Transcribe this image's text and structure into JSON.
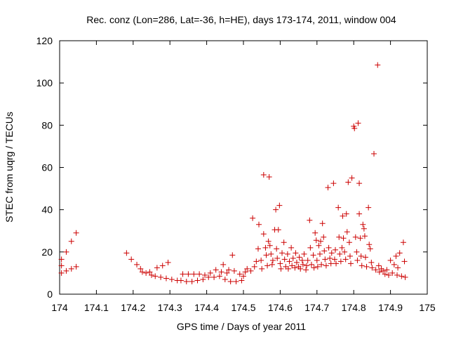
{
  "chart_data": {
    "type": "scatter",
    "title": "Rec. conz (Lon=286, Lat=-36, h=HE), days 173-174, 2011, window 004",
    "xlabel": "GPS time / Days of year 2011",
    "ylabel": "STEC from uqrg / TECUs",
    "xlim": [
      174,
      175
    ],
    "ylim": [
      0,
      120
    ],
    "grid": false,
    "legend": "none",
    "marker": "plus",
    "color": "#cc0000",
    "x_ticks": [
      174,
      174.1,
      174.2,
      174.3,
      174.4,
      174.5,
      174.6,
      174.7,
      174.8,
      174.9,
      175
    ],
    "x_tick_labels": [
      "174",
      "174.1",
      "174.2",
      "174.3",
      "174.4",
      "174.5",
      "174.6",
      "174.7",
      "174.8",
      "174.9",
      "175"
    ],
    "y_ticks": [
      0,
      20,
      40,
      60,
      80,
      100,
      120
    ],
    "y_tick_labels": [
      "0",
      "20",
      "40",
      "60",
      "80",
      "100",
      "120"
    ],
    "points": [
      [
        174.005,
        16.5
      ],
      [
        174.005,
        13.5
      ],
      [
        174.005,
        10.0
      ],
      [
        174.018,
        20.0
      ],
      [
        174.018,
        11.0
      ],
      [
        174.032,
        25.0
      ],
      [
        174.032,
        12.0
      ],
      [
        174.045,
        29.0
      ],
      [
        174.045,
        13.0
      ],
      [
        174.182,
        19.5
      ],
      [
        174.195,
        16.5
      ],
      [
        174.21,
        14.0
      ],
      [
        174.22,
        12.0
      ],
      [
        174.225,
        10.5
      ],
      [
        174.235,
        10.0
      ],
      [
        174.245,
        10.5
      ],
      [
        174.25,
        9.0
      ],
      [
        174.26,
        8.5
      ],
      [
        174.265,
        12.5
      ],
      [
        174.275,
        8.0
      ],
      [
        174.28,
        13.5
      ],
      [
        174.29,
        7.5
      ],
      [
        174.295,
        15.0
      ],
      [
        174.305,
        7.0
      ],
      [
        174.32,
        6.5
      ],
      [
        174.33,
        6.5
      ],
      [
        174.335,
        9.5
      ],
      [
        174.345,
        6.0
      ],
      [
        174.35,
        9.5
      ],
      [
        174.36,
        6.0
      ],
      [
        174.365,
        9.5
      ],
      [
        174.375,
        6.5
      ],
      [
        174.38,
        9.5
      ],
      [
        174.39,
        7.0
      ],
      [
        174.395,
        9.0
      ],
      [
        174.405,
        8.0
      ],
      [
        174.41,
        10.0
      ],
      [
        174.42,
        8.0
      ],
      [
        174.425,
        11.5
      ],
      [
        174.435,
        8.5
      ],
      [
        174.44,
        10.5
      ],
      [
        174.445,
        14.0
      ],
      [
        174.45,
        7.0
      ],
      [
        174.455,
        10.0
      ],
      [
        174.46,
        11.5
      ],
      [
        174.465,
        6.0
      ],
      [
        174.47,
        18.5
      ],
      [
        174.475,
        11.0
      ],
      [
        174.48,
        6.0
      ],
      [
        174.49,
        9.5
      ],
      [
        174.495,
        6.5
      ],
      [
        174.5,
        8.5
      ],
      [
        174.505,
        10.5
      ],
      [
        174.51,
        12.0
      ],
      [
        174.52,
        11.0
      ],
      [
        174.525,
        36.0
      ],
      [
        174.53,
        13.0
      ],
      [
        174.535,
        15.5
      ],
      [
        174.54,
        21.5
      ],
      [
        174.542,
        33.0
      ],
      [
        174.548,
        16.0
      ],
      [
        174.55,
        12.0
      ],
      [
        174.555,
        56.5
      ],
      [
        174.555,
        28.5
      ],
      [
        174.56,
        22.0
      ],
      [
        174.562,
        18.5
      ],
      [
        174.565,
        13.5
      ],
      [
        174.568,
        25.0
      ],
      [
        174.57,
        55.5
      ],
      [
        174.572,
        23.0
      ],
      [
        174.575,
        19.0
      ],
      [
        174.578,
        14.0
      ],
      [
        174.58,
        16.0
      ],
      [
        174.585,
        30.5
      ],
      [
        174.588,
        40.0
      ],
      [
        174.59,
        21.5
      ],
      [
        174.592,
        17.0
      ],
      [
        174.595,
        30.5
      ],
      [
        174.598,
        42.0
      ],
      [
        174.6,
        14.5
      ],
      [
        174.602,
        12.0
      ],
      [
        174.605,
        19.5
      ],
      [
        174.61,
        24.5
      ],
      [
        174.612,
        16.5
      ],
      [
        174.615,
        13.0
      ],
      [
        174.62,
        19.0
      ],
      [
        174.622,
        12.0
      ],
      [
        174.625,
        15.5
      ],
      [
        174.63,
        22.0
      ],
      [
        174.632,
        13.5
      ],
      [
        174.635,
        17.0
      ],
      [
        174.64,
        12.5
      ],
      [
        174.642,
        19.5
      ],
      [
        174.645,
        15.0
      ],
      [
        174.65,
        13.0
      ],
      [
        174.652,
        17.5
      ],
      [
        174.655,
        12.0
      ],
      [
        174.66,
        16.0
      ],
      [
        174.662,
        14.0
      ],
      [
        174.665,
        19.0
      ],
      [
        174.67,
        11.5
      ],
      [
        174.672,
        13.5
      ],
      [
        174.675,
        16.0
      ],
      [
        174.68,
        35.0
      ],
      [
        174.682,
        22.0
      ],
      [
        174.685,
        14.0
      ],
      [
        174.69,
        18.5
      ],
      [
        174.692,
        12.5
      ],
      [
        174.695,
        29.0
      ],
      [
        174.698,
        25.5
      ],
      [
        174.7,
        16.0
      ],
      [
        174.702,
        13.0
      ],
      [
        174.705,
        23.0
      ],
      [
        174.708,
        19.0
      ],
      [
        174.71,
        25.0
      ],
      [
        174.712,
        14.0
      ],
      [
        174.715,
        33.5
      ],
      [
        174.718,
        27.0
      ],
      [
        174.72,
        20.5
      ],
      [
        174.722,
        16.5
      ],
      [
        174.725,
        13.5
      ],
      [
        174.73,
        50.5
      ],
      [
        174.732,
        22.0
      ],
      [
        174.735,
        17.0
      ],
      [
        174.738,
        14.5
      ],
      [
        174.74,
        19.5
      ],
      [
        174.745,
        52.5
      ],
      [
        174.748,
        16.5
      ],
      [
        174.75,
        21.0
      ],
      [
        174.752,
        14.5
      ],
      [
        174.758,
        41.0
      ],
      [
        174.76,
        27.0
      ],
      [
        174.762,
        19.0
      ],
      [
        174.765,
        15.5
      ],
      [
        174.768,
        22.0
      ],
      [
        174.77,
        37.0
      ],
      [
        174.772,
        26.5
      ],
      [
        174.775,
        20.0
      ],
      [
        174.778,
        16.5
      ],
      [
        174.78,
        38.0
      ],
      [
        174.782,
        29.5
      ],
      [
        174.785,
        53.0
      ],
      [
        174.788,
        24.5
      ],
      [
        174.79,
        18.0
      ],
      [
        174.792,
        14.5
      ],
      [
        174.795,
        55.0
      ],
      [
        174.8,
        79.5
      ],
      [
        174.802,
        78.5
      ],
      [
        174.805,
        27.0
      ],
      [
        174.808,
        20.0
      ],
      [
        174.81,
        16.0
      ],
      [
        174.812,
        81.0
      ],
      [
        174.815,
        52.5
      ],
      [
        174.815,
        38.0
      ],
      [
        174.818,
        26.5
      ],
      [
        174.82,
        18.0
      ],
      [
        174.822,
        13.5
      ],
      [
        174.825,
        33.0
      ],
      [
        174.828,
        31.0
      ],
      [
        174.83,
        27.5
      ],
      [
        174.832,
        17.5
      ],
      [
        174.835,
        13.0
      ],
      [
        174.84,
        41.0
      ],
      [
        174.842,
        23.5
      ],
      [
        174.845,
        21.5
      ],
      [
        174.848,
        15.0
      ],
      [
        174.85,
        12.5
      ],
      [
        174.855,
        66.5
      ],
      [
        174.86,
        11.5
      ],
      [
        174.865,
        108.5
      ],
      [
        174.868,
        13.5
      ],
      [
        174.87,
        10.5
      ],
      [
        174.875,
        12.0
      ],
      [
        174.88,
        11.0
      ],
      [
        174.885,
        9.5
      ],
      [
        174.89,
        11.5
      ],
      [
        174.895,
        9.0
      ],
      [
        174.9,
        16.0
      ],
      [
        174.905,
        10.0
      ],
      [
        174.91,
        14.0
      ],
      [
        174.915,
        18.0
      ],
      [
        174.918,
        9.0
      ],
      [
        174.92,
        12.5
      ],
      [
        174.925,
        19.5
      ],
      [
        174.93,
        8.5
      ],
      [
        174.935,
        24.5
      ],
      [
        174.938,
        15.5
      ],
      [
        174.94,
        8.0
      ]
    ]
  }
}
